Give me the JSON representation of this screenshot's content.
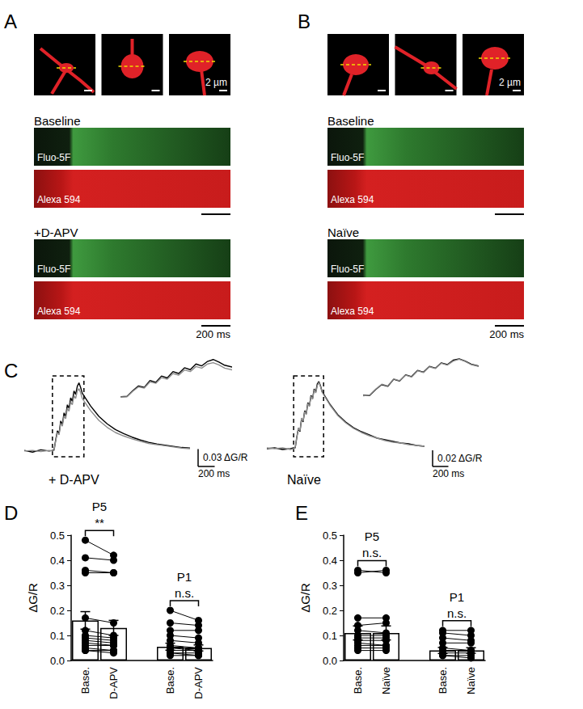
{
  "panel_labels": [
    "A",
    "B",
    "C",
    "D",
    "E"
  ],
  "imaging": [
    {
      "scale_bar": "2 µm",
      "sessions": [
        {
          "label": "Baseline",
          "channels": [
            "Fluo-5F",
            "Alexa 594"
          ]
        },
        {
          "label": "+D-APV",
          "channels": [
            "Fluo-5F",
            "Alexa 594"
          ],
          "time_scale": "200 ms"
        }
      ]
    },
    {
      "scale_bar": "2 µm",
      "sessions": [
        {
          "label": "Baseline",
          "channels": [
            "Fluo-5F",
            "Alexa 594"
          ]
        },
        {
          "label": "Naïve",
          "channels": [
            "Fluo-5F",
            "Alexa 594"
          ],
          "time_scale": "200 ms"
        }
      ]
    }
  ],
  "chart_data": [
    {
      "type": "line",
      "title": "+ D-APV",
      "tick_labels": false,
      "x": [
        0,
        100,
        200,
        300,
        340,
        360,
        380,
        400,
        420,
        440,
        460,
        480,
        500,
        520,
        540,
        560,
        580,
        600,
        620,
        640,
        660,
        680,
        700,
        800,
        900,
        1000,
        1100,
        1200,
        1300,
        1400,
        1500,
        1600,
        1700,
        1800,
        1900,
        2000
      ],
      "series": [
        {
          "name": "Baseline",
          "color": "#000000",
          "values": [
            0.001,
            -0.002,
            0.002,
            0.0,
            0.001,
            0.002,
            0.02,
            0.035,
            0.03,
            0.052,
            0.046,
            0.066,
            0.06,
            0.08,
            0.074,
            0.092,
            0.086,
            0.104,
            0.098,
            0.112,
            0.118,
            0.11,
            0.1,
            0.078,
            0.06,
            0.047,
            0.037,
            0.03,
            0.024,
            0.019,
            0.015,
            0.012,
            0.01,
            0.008,
            0.006,
            0.005
          ]
        },
        {
          "name": "+D-APV",
          "color": "#8c8c8c",
          "values": [
            0.0,
            0.001,
            -0.001,
            0.001,
            0.0,
            0.001,
            0.018,
            0.032,
            0.028,
            0.048,
            0.043,
            0.061,
            0.056,
            0.074,
            0.069,
            0.085,
            0.08,
            0.096,
            0.091,
            0.104,
            0.108,
            0.101,
            0.091,
            0.07,
            0.053,
            0.041,
            0.032,
            0.026,
            0.021,
            0.017,
            0.013,
            0.011,
            0.009,
            0.007,
            0.005,
            0.004
          ]
        }
      ],
      "xlim": [
        0,
        2000
      ],
      "ylim": [
        -0.01,
        0.13
      ],
      "inset": {
        "xlim": [
          340,
          720
        ]
      },
      "scale_bars": {
        "x": {
          "value": 200,
          "label": "200 ms"
        },
        "y": {
          "value": 0.03,
          "label": "0.03 ΔG/R"
        }
      }
    },
    {
      "type": "line",
      "title": "Naïve",
      "tick_labels": false,
      "x": [
        0,
        100,
        200,
        300,
        340,
        360,
        380,
        400,
        420,
        440,
        460,
        480,
        500,
        520,
        540,
        560,
        580,
        600,
        620,
        640,
        660,
        680,
        700,
        800,
        900,
        1000,
        1100,
        1200,
        1300,
        1400,
        1500,
        1600,
        1700,
        1800,
        1900,
        2000
      ],
      "series": [
        {
          "name": "Baseline",
          "color": "#000000",
          "values": [
            0.0,
            0.001,
            -0.001,
            0.0,
            0.001,
            0.001,
            0.014,
            0.025,
            0.021,
            0.037,
            0.033,
            0.047,
            0.043,
            0.057,
            0.053,
            0.066,
            0.062,
            0.074,
            0.07,
            0.08,
            0.083,
            0.078,
            0.071,
            0.055,
            0.042,
            0.033,
            0.026,
            0.021,
            0.017,
            0.013,
            0.011,
            0.009,
            0.007,
            0.006,
            0.004,
            0.003
          ]
        },
        {
          "name": "Naïve",
          "color": "#8c8c8c",
          "values": [
            0.001,
            0.0,
            0.001,
            -0.001,
            0.0,
            0.002,
            0.015,
            0.026,
            0.022,
            0.038,
            0.034,
            0.046,
            0.042,
            0.056,
            0.052,
            0.065,
            0.061,
            0.073,
            0.069,
            0.078,
            0.082,
            0.077,
            0.07,
            0.054,
            0.041,
            0.032,
            0.025,
            0.02,
            0.016,
            0.013,
            0.01,
            0.008,
            0.007,
            0.005,
            0.004,
            0.003
          ]
        }
      ],
      "xlim": [
        0,
        2000
      ],
      "ylim": [
        -0.01,
        0.09
      ],
      "inset": {
        "xlim": [
          340,
          720
        ]
      },
      "scale_bars": {
        "x": {
          "value": 200,
          "label": "200 ms"
        },
        "y": {
          "value": 0.02,
          "label": "0.02 ΔG/R"
        }
      }
    },
    {
      "type": "bar",
      "ylabel": "ΔG/R",
      "color": "#ffffff",
      "categories": [
        "Base.",
        "D-APV",
        null,
        "Base.",
        "D-APV"
      ],
      "values": [
        0.16,
        0.13,
        null,
        0.055,
        0.05
      ],
      "errors": [
        0.035,
        0.03,
        null,
        0.014,
        0.012
      ],
      "ylim": [
        0,
        0.5
      ],
      "yticks": [
        {
          "value": 0,
          "label": "0.0"
        },
        0.1,
        0.2,
        0.3,
        0.4,
        0.5
      ],
      "groups": [
        {
          "label": "P5",
          "annotation": "**",
          "pairs": [
            [
              0.48,
              0.42
            ],
            [
              0.41,
              0.4
            ],
            [
              0.36,
              0.35
            ],
            [
              0.35,
              0.35
            ],
            [
              0.17,
              0.15
            ],
            [
              0.12,
              0.1
            ],
            [
              0.1,
              0.09
            ],
            [
              0.09,
              0.08
            ],
            [
              0.08,
              0.07
            ],
            [
              0.07,
              0.06
            ],
            [
              0.06,
              0.06
            ],
            [
              0.05,
              0.04
            ],
            [
              0.04,
              0.04
            ],
            [
              0.04,
              0.03
            ]
          ]
        },
        {
          "label": "P1",
          "annotation": "n.s.",
          "pairs": [
            [
              0.2,
              0.16
            ],
            [
              0.15,
              0.14
            ],
            [
              0.12,
              0.12
            ],
            [
              0.1,
              0.09
            ],
            [
              0.08,
              0.07
            ],
            [
              0.06,
              0.05
            ],
            [
              0.05,
              0.05
            ],
            [
              0.05,
              0.04
            ],
            [
              0.04,
              0.04
            ],
            [
              0.03,
              0.03
            ],
            [
              0.03,
              0.02
            ],
            [
              0.02,
              0.02
            ]
          ]
        }
      ]
    },
    {
      "type": "bar",
      "ylabel": "ΔG/R",
      "color": "#ffffff",
      "categories": [
        "Base.",
        "Naïve",
        null,
        "Base.",
        "Naïve"
      ],
      "values": [
        0.11,
        0.11,
        null,
        0.04,
        0.04
      ],
      "errors": [
        0.028,
        0.028,
        null,
        0.012,
        0.011
      ],
      "ylim": [
        0,
        0.5
      ],
      "yticks": [
        {
          "value": 0,
          "label": "0.0"
        },
        0.1,
        0.2,
        0.3,
        0.4,
        0.5
      ],
      "groups": [
        {
          "label": "P5",
          "annotation": "n.s.",
          "pairs": [
            [
              0.36,
              0.35
            ],
            [
              0.35,
              0.36
            ],
            [
              0.17,
              0.17
            ],
            [
              0.14,
              0.15
            ],
            [
              0.12,
              0.11
            ],
            [
              0.1,
              0.1
            ],
            [
              0.09,
              0.09
            ],
            [
              0.08,
              0.08
            ],
            [
              0.07,
              0.06
            ],
            [
              0.06,
              0.06
            ],
            [
              0.05,
              0.05
            ],
            [
              0.04,
              0.04
            ]
          ]
        },
        {
          "label": "P1",
          "annotation": "n.s.",
          "pairs": [
            [
              0.12,
              0.12
            ],
            [
              0.11,
              0.1
            ],
            [
              0.09,
              0.08
            ],
            [
              0.07,
              0.07
            ],
            [
              0.05,
              0.04
            ],
            [
              0.04,
              0.04
            ],
            [
              0.03,
              0.03
            ],
            [
              0.02,
              0.02
            ],
            [
              0.02,
              0.01
            ]
          ]
        }
      ]
    }
  ]
}
